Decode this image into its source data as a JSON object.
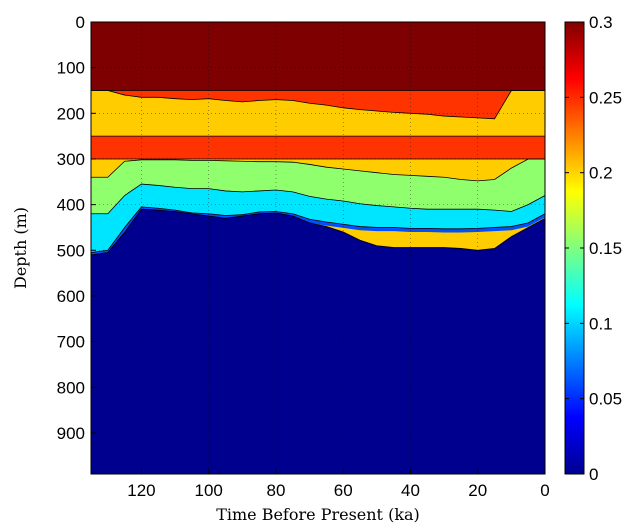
{
  "chart_data": {
    "type": "heatmap",
    "subtype": "filled-contour",
    "xlabel": "Time Before Present (ka)",
    "ylabel": "Depth (m)",
    "xlim": [
      135,
      0
    ],
    "ylim": [
      0,
      990
    ],
    "x_reversed": true,
    "y_reversed": true,
    "grid": true,
    "xticks": [
      "120",
      "100",
      "80",
      "60",
      "40",
      "20",
      "0"
    ],
    "yticks": [
      "0",
      "100",
      "200",
      "300",
      "400",
      "500",
      "600",
      "700",
      "800",
      "900"
    ],
    "colorbar": {
      "colormap": "jet",
      "clim": [
        0,
        0.3
      ],
      "ticks": [
        "0",
        "0.05",
        "0.1",
        "0.15",
        "0.2",
        "0.25",
        "0.3"
      ]
    },
    "bands_by_depth": [
      {
        "depth_range": [
          0,
          150
        ],
        "value": 0.3,
        "color": "#7f0000"
      },
      {
        "depth_range": [
          150,
          250
        ],
        "value": 0.2,
        "color": "#ffcc00"
      },
      {
        "depth_range": [
          250,
          300
        ],
        "value": 0.27,
        "color": "#ff3300"
      },
      {
        "depth_range": [
          300,
          420
        ],
        "value": 0.15,
        "color": "#90ff6e"
      },
      {
        "depth_range": [
          420,
          990
        ],
        "value": 0.0,
        "color": "#00008f"
      }
    ],
    "boundaries": {
      "x": [
        135,
        130,
        125,
        120,
        115,
        110,
        105,
        100,
        95,
        90,
        85,
        80,
        75,
        70,
        65,
        60,
        55,
        50,
        45,
        40,
        35,
        30,
        25,
        20,
        15,
        10,
        5,
        0
      ],
      "shallow_red_bottom": [
        150,
        150,
        160,
        165,
        165,
        168,
        170,
        168,
        172,
        175,
        172,
        170,
        172,
        178,
        182,
        188,
        192,
        195,
        198,
        200,
        202,
        206,
        208,
        210,
        212,
        150,
        150,
        150
      ],
      "green_top": [
        340,
        340,
        305,
        302,
        302,
        302,
        303,
        303,
        304,
        305,
        306,
        306,
        307,
        312,
        318,
        322,
        326,
        330,
        334,
        336,
        338,
        340,
        345,
        348,
        345,
        320,
        300,
        300
      ],
      "cyan_top": [
        420,
        420,
        380,
        355,
        358,
        362,
        365,
        365,
        370,
        372,
        370,
        368,
        372,
        382,
        388,
        392,
        398,
        402,
        405,
        408,
        410,
        410,
        410,
        410,
        412,
        415,
        400,
        380
      ],
      "blue_top": [
        505,
        500,
        450,
        405,
        408,
        412,
        418,
        420,
        424,
        422,
        416,
        415,
        420,
        432,
        438,
        443,
        448,
        450,
        450,
        452,
        452,
        453,
        453,
        452,
        450,
        448,
        440,
        420
      ],
      "deep_blue_top": [
        510,
        505,
        460,
        410,
        412,
        415,
        420,
        425,
        430,
        425,
        420,
        418,
        425,
        440,
        448,
        460,
        478,
        490,
        494,
        494,
        494,
        494,
        496,
        500,
        496,
        470,
        450,
        430
      ]
    }
  }
}
